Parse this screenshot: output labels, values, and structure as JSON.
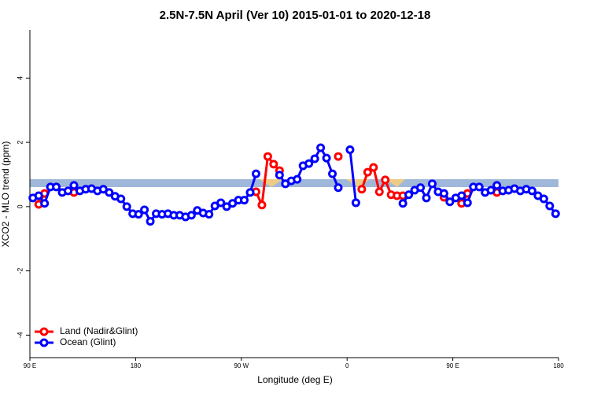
{
  "chart_data": {
    "type": "line",
    "title": "2.5N-7.5N April (Ver 10)   2015-01-01 to 2020-12-18",
    "x_label": "Longitude (deg E)",
    "y_label": "XCO2 - MLO trend (ppm)",
    "xlim": [
      90,
      540
    ],
    "xticks": [
      {
        "value": 90,
        "label": "90 E"
      },
      180,
      {
        "value": 270,
        "label": "90 W"
      },
      {
        "value": 360,
        "label": "0"
      },
      {
        "value": 450,
        "label": "90 E"
      },
      {
        "value": 540,
        "label": "180"
      }
    ],
    "ylim": [
      -4.7,
      5.5
    ],
    "yticks": [
      -4,
      -2,
      0,
      2,
      4
    ],
    "grid": false,
    "legend": "bottom-left",
    "x": [
      92.5,
      97.5,
      102.5,
      107.5,
      112.5,
      117.5,
      122.5,
      127.5,
      132.5,
      137.5,
      142.5,
      147.5,
      152.5,
      157.5,
      162.5,
      167.5,
      172.5,
      177.5,
      182.5,
      187.5,
      192.5,
      197.5,
      202.5,
      207.5,
      212.5,
      217.5,
      222.5,
      227.5,
      232.5,
      237.5,
      242.5,
      247.5,
      252.5,
      257.5,
      262.5,
      267.5,
      272.5,
      277.5,
      282.5,
      287.5,
      292.5,
      297.5,
      302.5,
      307.5,
      312.5,
      317.5,
      322.5,
      327.5,
      332.5,
      337.5,
      342.5,
      347.5,
      352.5,
      357.5,
      362.5,
      367.5,
      372.5,
      377.5,
      382.5,
      387.5,
      392.5,
      397.5,
      402.5,
      407.5,
      412.5,
      417.5,
      422.5,
      427.5,
      432.5,
      437.5,
      442.5,
      447.5,
      452.5,
      457.5,
      462.5,
      467.5,
      472.5,
      477.5,
      482.5,
      487.5,
      492.5,
      497.5,
      502.5,
      507.5,
      512.5,
      517.5,
      522.5,
      527.5,
      532.5,
      537.5
    ],
    "series": [
      {
        "name": "Land (Nadir&Glint)",
        "color": "#ff0000",
        "values": [
          null,
          0.07,
          0.41,
          null,
          null,
          null,
          null,
          0.44,
          null,
          null,
          null,
          null,
          null,
          null,
          null,
          null,
          null,
          null,
          null,
          null,
          null,
          null,
          null,
          null,
          null,
          null,
          null,
          null,
          null,
          null,
          null,
          null,
          null,
          null,
          null,
          null,
          null,
          null,
          0.46,
          0.05,
          1.56,
          1.32,
          1.12,
          null,
          null,
          null,
          null,
          null,
          null,
          null,
          null,
          null,
          1.56,
          null,
          null,
          null,
          0.54,
          1.07,
          1.22,
          0.46,
          0.83,
          0.37,
          0.34,
          0.34,
          null,
          null,
          null,
          null,
          null,
          null,
          0.29,
          null,
          null,
          0.1,
          0.41,
          null,
          null,
          null,
          null,
          0.44,
          null,
          null,
          null,
          null,
          null,
          null,
          null,
          null,
          null,
          null
        ]
      },
      {
        "name": "Ocean (Glint)",
        "color": "#0000ff",
        "values": [
          0.27,
          0.34,
          0.1,
          0.61,
          0.61,
          0.44,
          0.49,
          0.66,
          0.49,
          0.54,
          0.56,
          0.49,
          0.54,
          0.44,
          0.32,
          0.24,
          0,
          -0.22,
          -0.24,
          -0.1,
          -0.46,
          -0.22,
          -0.24,
          -0.22,
          -0.27,
          -0.27,
          -0.32,
          -0.27,
          -0.12,
          -0.2,
          -0.24,
          0.02,
          0.12,
          0,
          0.1,
          0.2,
          0.2,
          0.44,
          1.02,
          null,
          null,
          null,
          0.98,
          0.71,
          0.8,
          0.85,
          1.27,
          1.34,
          1.49,
          1.83,
          1.51,
          1.02,
          0.59,
          null,
          1.77,
          0.12,
          null,
          null,
          null,
          null,
          null,
          null,
          null,
          0.1,
          0.37,
          0.51,
          0.59,
          0.27,
          0.71,
          0.46,
          0.41,
          0.15,
          0.27,
          0.34,
          0.12,
          0.61,
          0.61,
          0.44,
          0.51,
          0.66,
          0.49,
          0.51,
          0.56,
          0.49,
          0.54,
          0.49,
          0.34,
          0.24,
          0.02,
          -0.22
        ]
      }
    ]
  }
}
